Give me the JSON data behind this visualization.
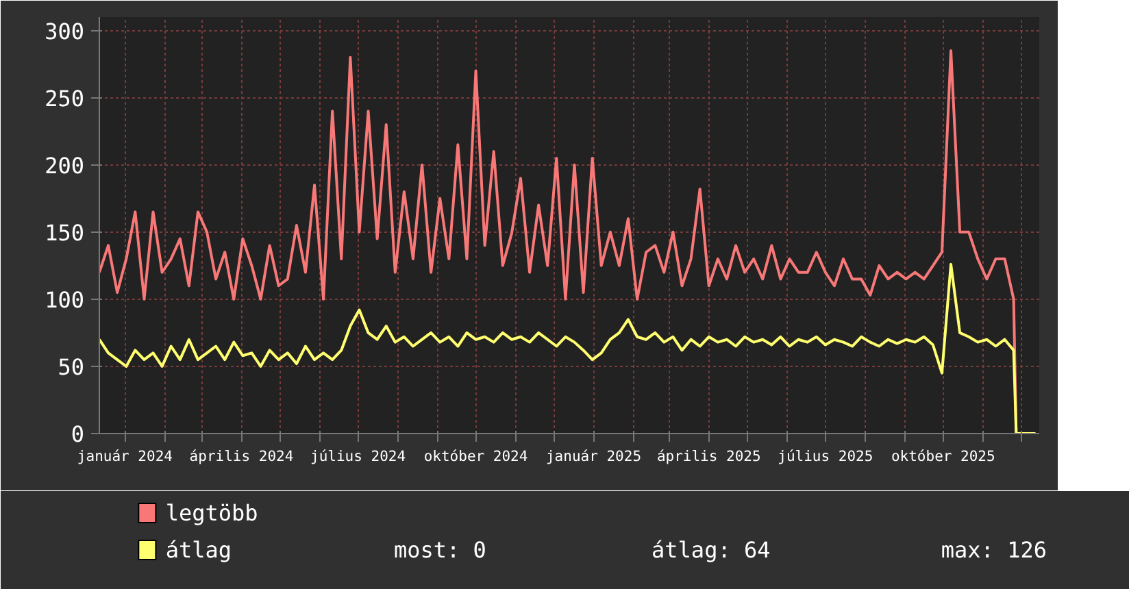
{
  "chart_data": {
    "type": "line",
    "x": [
      "2023-12-12",
      "2023-12-19",
      "2023-12-26",
      "2024-01-02",
      "2024-01-09",
      "2024-01-16",
      "2024-01-23",
      "2024-01-30",
      "2024-02-06",
      "2024-02-13",
      "2024-02-20",
      "2024-02-27",
      "2024-03-05",
      "2024-03-12",
      "2024-03-19",
      "2024-03-26",
      "2024-04-02",
      "2024-04-09",
      "2024-04-16",
      "2024-04-23",
      "2024-04-30",
      "2024-05-07",
      "2024-05-14",
      "2024-05-21",
      "2024-05-28",
      "2024-06-04",
      "2024-06-11",
      "2024-06-18",
      "2024-06-25",
      "2024-07-02",
      "2024-07-09",
      "2024-07-16",
      "2024-07-23",
      "2024-07-30",
      "2024-08-06",
      "2024-08-13",
      "2024-08-20",
      "2024-08-27",
      "2024-09-03",
      "2024-09-10",
      "2024-09-17",
      "2024-09-24",
      "2024-10-01",
      "2024-10-08",
      "2024-10-15",
      "2024-10-22",
      "2024-10-29",
      "2024-11-05",
      "2024-11-12",
      "2024-11-19",
      "2024-11-26",
      "2024-12-03",
      "2024-12-10",
      "2024-12-17",
      "2024-12-24",
      "2024-12-31",
      "2025-01-07",
      "2025-01-14",
      "2025-01-21",
      "2025-01-28",
      "2025-02-04",
      "2025-02-11",
      "2025-02-18",
      "2025-02-25",
      "2025-03-04",
      "2025-03-11",
      "2025-03-18",
      "2025-03-25",
      "2025-04-01",
      "2025-04-08",
      "2025-04-15",
      "2025-04-22",
      "2025-04-29",
      "2025-05-06",
      "2025-05-13",
      "2025-05-20",
      "2025-05-27",
      "2025-06-03",
      "2025-06-10",
      "2025-06-17",
      "2025-06-24",
      "2025-07-01",
      "2025-07-08",
      "2025-07-15",
      "2025-07-22",
      "2025-07-29",
      "2025-08-05",
      "2025-08-12",
      "2025-08-19",
      "2025-08-26",
      "2025-09-02",
      "2025-09-09",
      "2025-09-16",
      "2025-09-23",
      "2025-09-30",
      "2025-10-07",
      "2025-10-14",
      "2025-10-21",
      "2025-10-28",
      "2025-11-04",
      "2025-11-11",
      "2025-11-18",
      "2025-11-25",
      "2025-11-27",
      "2025-12-12"
    ],
    "series": [
      {
        "name": "legtöbb",
        "color": "#f87878",
        "values": [
          120,
          140,
          105,
          130,
          165,
          100,
          165,
          120,
          130,
          145,
          110,
          165,
          150,
          115,
          135,
          100,
          145,
          125,
          100,
          140,
          110,
          115,
          155,
          120,
          185,
          100,
          240,
          130,
          280,
          150,
          240,
          145,
          230,
          120,
          180,
          130,
          200,
          120,
          175,
          130,
          215,
          130,
          270,
          140,
          210,
          125,
          149,
          190,
          120,
          170,
          125,
          205,
          100,
          200,
          105,
          205,
          125,
          150,
          125,
          160,
          100,
          135,
          140,
          120,
          150,
          110,
          130,
          182,
          110,
          130,
          115,
          140,
          120,
          130,
          115,
          140,
          115,
          130,
          120,
          120,
          135,
          120,
          110,
          130,
          115,
          115,
          103,
          125,
          115,
          120,
          115,
          120,
          115,
          125,
          135,
          285,
          150,
          150,
          130,
          115,
          130,
          130,
          100,
          0,
          0
        ]
      },
      {
        "name": "átlag",
        "color": "#ffff70",
        "values": [
          70,
          60,
          55,
          50,
          62,
          55,
          60,
          50,
          65,
          55,
          70,
          55,
          60,
          65,
          55,
          68,
          58,
          60,
          50,
          62,
          55,
          60,
          52,
          65,
          55,
          60,
          55,
          62,
          80,
          92,
          75,
          70,
          80,
          68,
          72,
          65,
          70,
          75,
          68,
          72,
          65,
          75,
          70,
          72,
          68,
          75,
          70,
          72,
          68,
          75,
          70,
          65,
          72,
          68,
          62,
          55,
          60,
          70,
          75,
          85,
          72,
          70,
          75,
          68,
          72,
          62,
          70,
          65,
          72,
          68,
          70,
          65,
          72,
          68,
          70,
          66,
          72,
          65,
          70,
          68,
          72,
          66,
          70,
          68,
          65,
          72,
          68,
          65,
          70,
          67,
          70,
          68,
          72,
          66,
          45,
          126,
          75,
          72,
          68,
          70,
          65,
          70,
          62,
          0,
          0
        ]
      }
    ],
    "xlim": [
      "2023-12-12",
      "2025-12-15"
    ],
    "xticks": [
      {
        "value": "2024-01-01",
        "label": "január 2024"
      },
      {
        "value": "2024-02-01",
        "label": null
      },
      {
        "value": "2024-03-01",
        "label": null
      },
      {
        "value": "2024-04-01",
        "label": "április 2024"
      },
      {
        "value": "2024-05-01",
        "label": null
      },
      {
        "value": "2024-06-01",
        "label": null
      },
      {
        "value": "2024-07-01",
        "label": "július 2024"
      },
      {
        "value": "2024-08-01",
        "label": null
      },
      {
        "value": "2024-09-01",
        "label": null
      },
      {
        "value": "2024-10-01",
        "label": "október 2024"
      },
      {
        "value": "2024-11-01",
        "label": null
      },
      {
        "value": "2024-12-01",
        "label": null
      },
      {
        "value": "2025-01-01",
        "label": "január 2025"
      },
      {
        "value": "2025-02-01",
        "label": null
      },
      {
        "value": "2025-03-01",
        "label": null
      },
      {
        "value": "2025-04-01",
        "label": "április 2025"
      },
      {
        "value": "2025-05-01",
        "label": null
      },
      {
        "value": "2025-06-01",
        "label": null
      },
      {
        "value": "2025-07-01",
        "label": "július 2025"
      },
      {
        "value": "2025-08-01",
        "label": null
      },
      {
        "value": "2025-09-01",
        "label": null
      },
      {
        "value": "2025-10-01",
        "label": "október 2025"
      },
      {
        "value": "2025-11-01",
        "label": null
      },
      {
        "value": "2025-12-01",
        "label": null
      }
    ],
    "ylim": [
      0,
      310
    ],
    "yticks": [
      0,
      50,
      100,
      150,
      200,
      250,
      300
    ],
    "grid": true,
    "legend": "bottom",
    "line_style": "solid",
    "annotations": [
      "most: 0",
      "átlag: 64",
      "max: 126"
    ]
  }
}
